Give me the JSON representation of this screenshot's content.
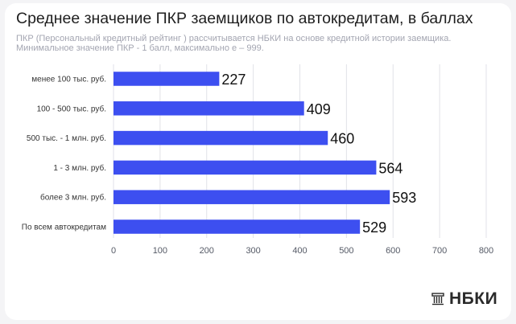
{
  "header": {
    "title": "Среднее значение ПКР заемщиков по автокредитам, в баллах",
    "subtitle_line1": "ПКР (Персональный кредитный рейтинг ) рассчитывается НБКИ на основе кредитной истории заемщика.",
    "subtitle_line2": "Минимальное значение ПКР -  1 балл, максимально  е – 999."
  },
  "logo": {
    "text": "НБКИ",
    "icon": "bank-building-icon"
  },
  "colors": {
    "bar": "#3d4ff0",
    "grid": "#e1e2e8",
    "tick": "#555a66",
    "value": "#111111"
  },
  "chart_data": {
    "type": "bar",
    "orientation": "horizontal",
    "categories": [
      "менее 100 тыс. руб.",
      "100 - 500 тыс. руб.",
      "500 тыс. - 1 млн. руб.",
      "1 - 3 млн. руб.",
      "более 3 млн. руб.",
      "По всем автокредитам"
    ],
    "values": [
      227,
      409,
      460,
      564,
      593,
      529
    ],
    "xlim": [
      0,
      800
    ],
    "xticks": [
      0,
      100,
      200,
      300,
      400,
      500,
      600,
      700,
      800
    ],
    "grid": true,
    "data_labels": true,
    "legend": "none"
  }
}
